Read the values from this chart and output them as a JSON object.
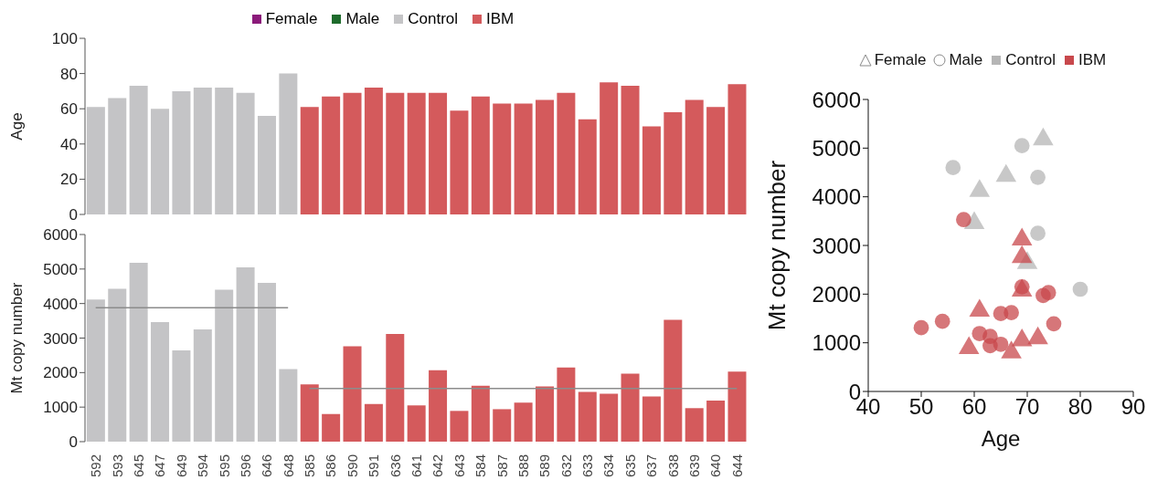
{
  "chart_data": [
    {
      "type": "bar",
      "ylabel": "Age",
      "categories": [
        "592",
        "593",
        "645",
        "647",
        "649",
        "594",
        "595",
        "596",
        "646",
        "648",
        "585",
        "586",
        "590",
        "591",
        "636",
        "641",
        "642",
        "643",
        "584",
        "587",
        "588",
        "589",
        "632",
        "633",
        "634",
        "635",
        "637",
        "638",
        "639",
        "640",
        "644"
      ],
      "series": [
        {
          "name": "Female",
          "color": "#8b1a7a",
          "values": [
            null,
            null,
            null,
            null,
            null,
            null,
            null,
            null,
            null,
            null,
            null,
            null,
            null,
            null,
            null,
            null,
            null,
            null,
            null,
            null,
            null,
            null,
            null,
            null,
            null,
            null,
            null,
            null,
            null,
            null,
            null
          ]
        },
        {
          "name": "Male",
          "color": "#1e6b2c",
          "values": [
            null,
            null,
            null,
            null,
            null,
            null,
            null,
            null,
            null,
            null,
            null,
            null,
            null,
            null,
            null,
            null,
            null,
            null,
            null,
            null,
            null,
            null,
            null,
            null,
            null,
            null,
            null,
            null,
            null,
            null,
            null
          ]
        },
        {
          "name": "Control",
          "color": "#c4c4c6",
          "values": [
            61,
            66,
            73,
            60,
            70,
            72,
            72,
            69,
            56,
            80,
            null,
            null,
            null,
            null,
            null,
            null,
            null,
            null,
            null,
            null,
            null,
            null,
            null,
            null,
            null,
            null,
            null,
            null,
            null,
            null,
            null
          ]
        },
        {
          "name": "IBM",
          "color": "#d45a5c",
          "values": [
            null,
            null,
            null,
            null,
            null,
            null,
            null,
            null,
            null,
            null,
            61,
            67,
            69,
            72,
            69,
            69,
            69,
            59,
            67,
            63,
            63,
            65,
            69,
            54,
            75,
            73,
            50,
            58,
            65,
            61,
            74
          ]
        }
      ],
      "stacked": true,
      "ylim": [
        0,
        100
      ],
      "yticks": [
        0,
        20,
        40,
        60,
        80,
        100
      ],
      "legend": "top",
      "tick_labels": "y"
    },
    {
      "type": "bar",
      "ylabel": "Mt copy number",
      "categories": [
        "592",
        "593",
        "645",
        "647",
        "649",
        "594",
        "595",
        "596",
        "646",
        "648",
        "585",
        "586",
        "590",
        "591",
        "636",
        "641",
        "642",
        "643",
        "584",
        "587",
        "588",
        "589",
        "632",
        "633",
        "634",
        "635",
        "637",
        "638",
        "639",
        "640",
        "644"
      ],
      "series": [
        {
          "color": "#c4c4c6",
          "values": [
            4120,
            4430,
            5180,
            3460,
            2640,
            3250,
            4400,
            5050,
            4600,
            2100,
            null,
            null,
            null,
            null,
            null,
            null,
            null,
            null,
            null,
            null,
            null,
            null,
            null,
            null,
            null,
            null,
            null,
            null,
            null,
            null,
            null
          ]
        },
        {
          "color": "#d45a5c",
          "values": [
            null,
            null,
            null,
            null,
            null,
            null,
            null,
            null,
            null,
            null,
            1660,
            800,
            2760,
            1090,
            3120,
            1050,
            2070,
            890,
            1620,
            940,
            1130,
            1600,
            2150,
            1440,
            1390,
            1970,
            1310,
            3530,
            970,
            1190,
            2030
          ]
        },
        {
          "type": "line",
          "color": "#8c8c8c",
          "values": [
            3880,
            3880,
            3880,
            3880,
            3880,
            3880,
            3880,
            3880,
            3880,
            3880,
            null,
            null,
            null,
            null,
            null,
            null,
            null,
            null,
            null,
            null,
            null,
            null,
            null,
            null,
            null,
            null,
            null,
            null,
            null,
            null,
            null
          ]
        },
        {
          "type": "line",
          "color": "#8c8c8c",
          "values": [
            null,
            null,
            null,
            null,
            null,
            null,
            null,
            null,
            null,
            null,
            1540,
            1540,
            1540,
            1540,
            1540,
            1540,
            1540,
            1540,
            1540,
            1540,
            1540,
            1540,
            1540,
            1540,
            1540,
            1540,
            1540,
            1540,
            1540,
            1540,
            1540
          ]
        }
      ],
      "stacked": true,
      "ylim": [
        0,
        6000
      ],
      "yticks": [
        0,
        1000,
        2000,
        3000,
        4000,
        5000,
        6000
      ]
    },
    {
      "type": "scatter",
      "xlabel": "Age",
      "ylabel": "Mt copy number",
      "annotations": [
        "Female",
        "Male",
        "Control",
        "IBM"
      ],
      "series": [
        {
          "marker": "triangle",
          "color": "#b5b5b5",
          "x": [
            61,
            66,
            73,
            60,
            70
          ],
          "values": [
            4120,
            4430,
            5180,
            3460,
            2640
          ]
        },
        {
          "marker": "circle",
          "color": "#b5b5b5",
          "x": [
            72,
            72,
            69,
            56,
            80
          ],
          "values": [
            3250,
            4400,
            5050,
            4600,
            2100
          ]
        },
        {
          "marker": "triangle",
          "color": "#c8484c",
          "x": [
            61,
            67,
            69,
            72,
            69,
            69,
            69,
            59
          ],
          "values": [
            1660,
            800,
            2760,
            1090,
            3120,
            1050,
            2070,
            890
          ]
        },
        {
          "marker": "circle",
          "color": "#c8484c",
          "x": [
            67,
            63,
            63,
            65,
            69,
            54,
            75,
            73,
            50,
            58,
            65,
            61,
            74
          ],
          "values": [
            1620,
            940,
            1130,
            1600,
            2150,
            1440,
            1390,
            1970,
            1310,
            3530,
            970,
            1190,
            2030
          ]
        }
      ],
      "xlim": [
        40,
        90
      ],
      "xticks": [
        40,
        50,
        60,
        70,
        80,
        90
      ],
      "ylim": [
        0,
        6000
      ],
      "yticks": [
        0,
        1000,
        2000,
        3000,
        4000,
        5000,
        6000
      ],
      "legend": "top"
    }
  ]
}
